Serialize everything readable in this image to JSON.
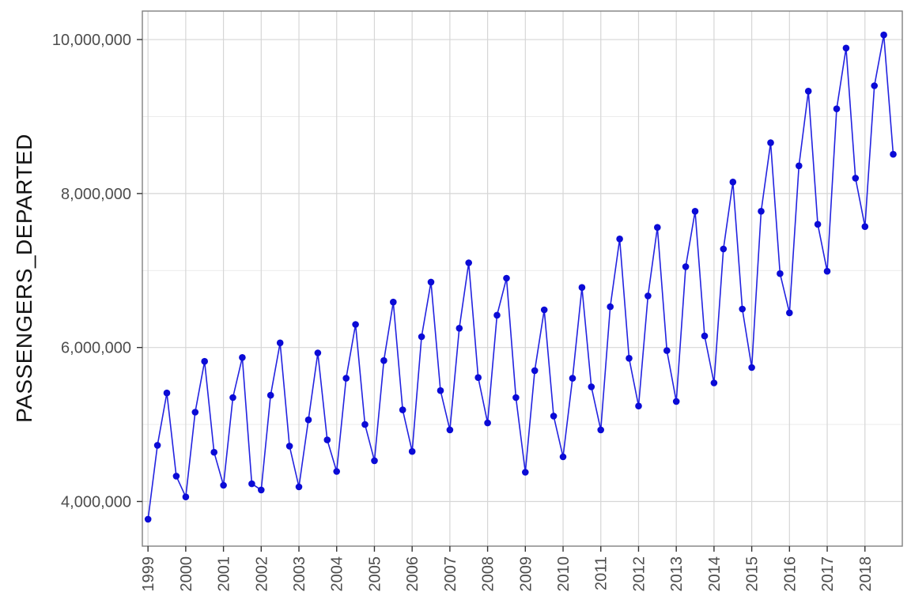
{
  "chart_data": {
    "type": "line",
    "title": "",
    "xlabel": "",
    "ylabel": "PASSENGERS_DEPARTED",
    "legend": "none",
    "grid": "on",
    "x_start": 1999,
    "x_step": 0.25,
    "frequency": "quarterly",
    "series": [
      {
        "name": "PASSENGERS_DEPARTED",
        "values": [
          3770000,
          4730000,
          5410000,
          4330000,
          4060000,
          5160000,
          5820000,
          4640000,
          4210000,
          5350000,
          5870000,
          4230000,
          4150000,
          5380000,
          6060000,
          4720000,
          4190000,
          5060000,
          5930000,
          4800000,
          4390000,
          5600000,
          6300000,
          5000000,
          4530000,
          5830000,
          6590000,
          5190000,
          4650000,
          6140000,
          6850000,
          5440000,
          4930000,
          6250000,
          7100000,
          5610000,
          5020000,
          6420000,
          6900000,
          5350000,
          4380000,
          5700000,
          6490000,
          5110000,
          4580000,
          5600000,
          6780000,
          5490000,
          4930000,
          6530000,
          7410000,
          5860000,
          5240000,
          6670000,
          7560000,
          5960000,
          5300000,
          7050000,
          7770000,
          6150000,
          5540000,
          7280000,
          8150000,
          6500000,
          5740000,
          7770000,
          8660000,
          6960000,
          6450000,
          8360000,
          9330000,
          7600000,
          6990000,
          9100000,
          9890000,
          8200000,
          7570000,
          9400000,
          10060000,
          8510000
        ]
      }
    ],
    "x_ticks": [
      1999,
      2000,
      2001,
      2002,
      2003,
      2004,
      2005,
      2006,
      2007,
      2008,
      2009,
      2010,
      2011,
      2012,
      2013,
      2014,
      2015,
      2016,
      2017,
      2018
    ],
    "x_tick_labels": [
      "1999",
      "2000",
      "2001",
      "2002",
      "2003",
      "2004",
      "2005",
      "2006",
      "2007",
      "2008",
      "2009",
      "2010",
      "2011",
      "2012",
      "2013",
      "2014",
      "2015",
      "2016",
      "2017",
      "2018"
    ],
    "y_major": [
      4000000,
      6000000,
      8000000,
      10000000
    ],
    "y_minor": [
      5000000,
      7000000,
      9000000
    ],
    "y_tick_labels": [
      "4,000,000",
      "6,000,000",
      "8,000,000",
      "10,000,000"
    ],
    "xlim": [
      1998.85,
      2018.99
    ],
    "ylim": [
      3420000,
      10370000
    ],
    "colors": {
      "line": "#2222e0",
      "point": "#0b0bd6",
      "grid_major": "#d6d6d6",
      "grid_minor": "#e9e9e9",
      "panel_border": "#808080",
      "tick": "#333333",
      "tick_label": "#4d4d4d",
      "axis_title": "#141414",
      "background": "#ffffff"
    }
  }
}
